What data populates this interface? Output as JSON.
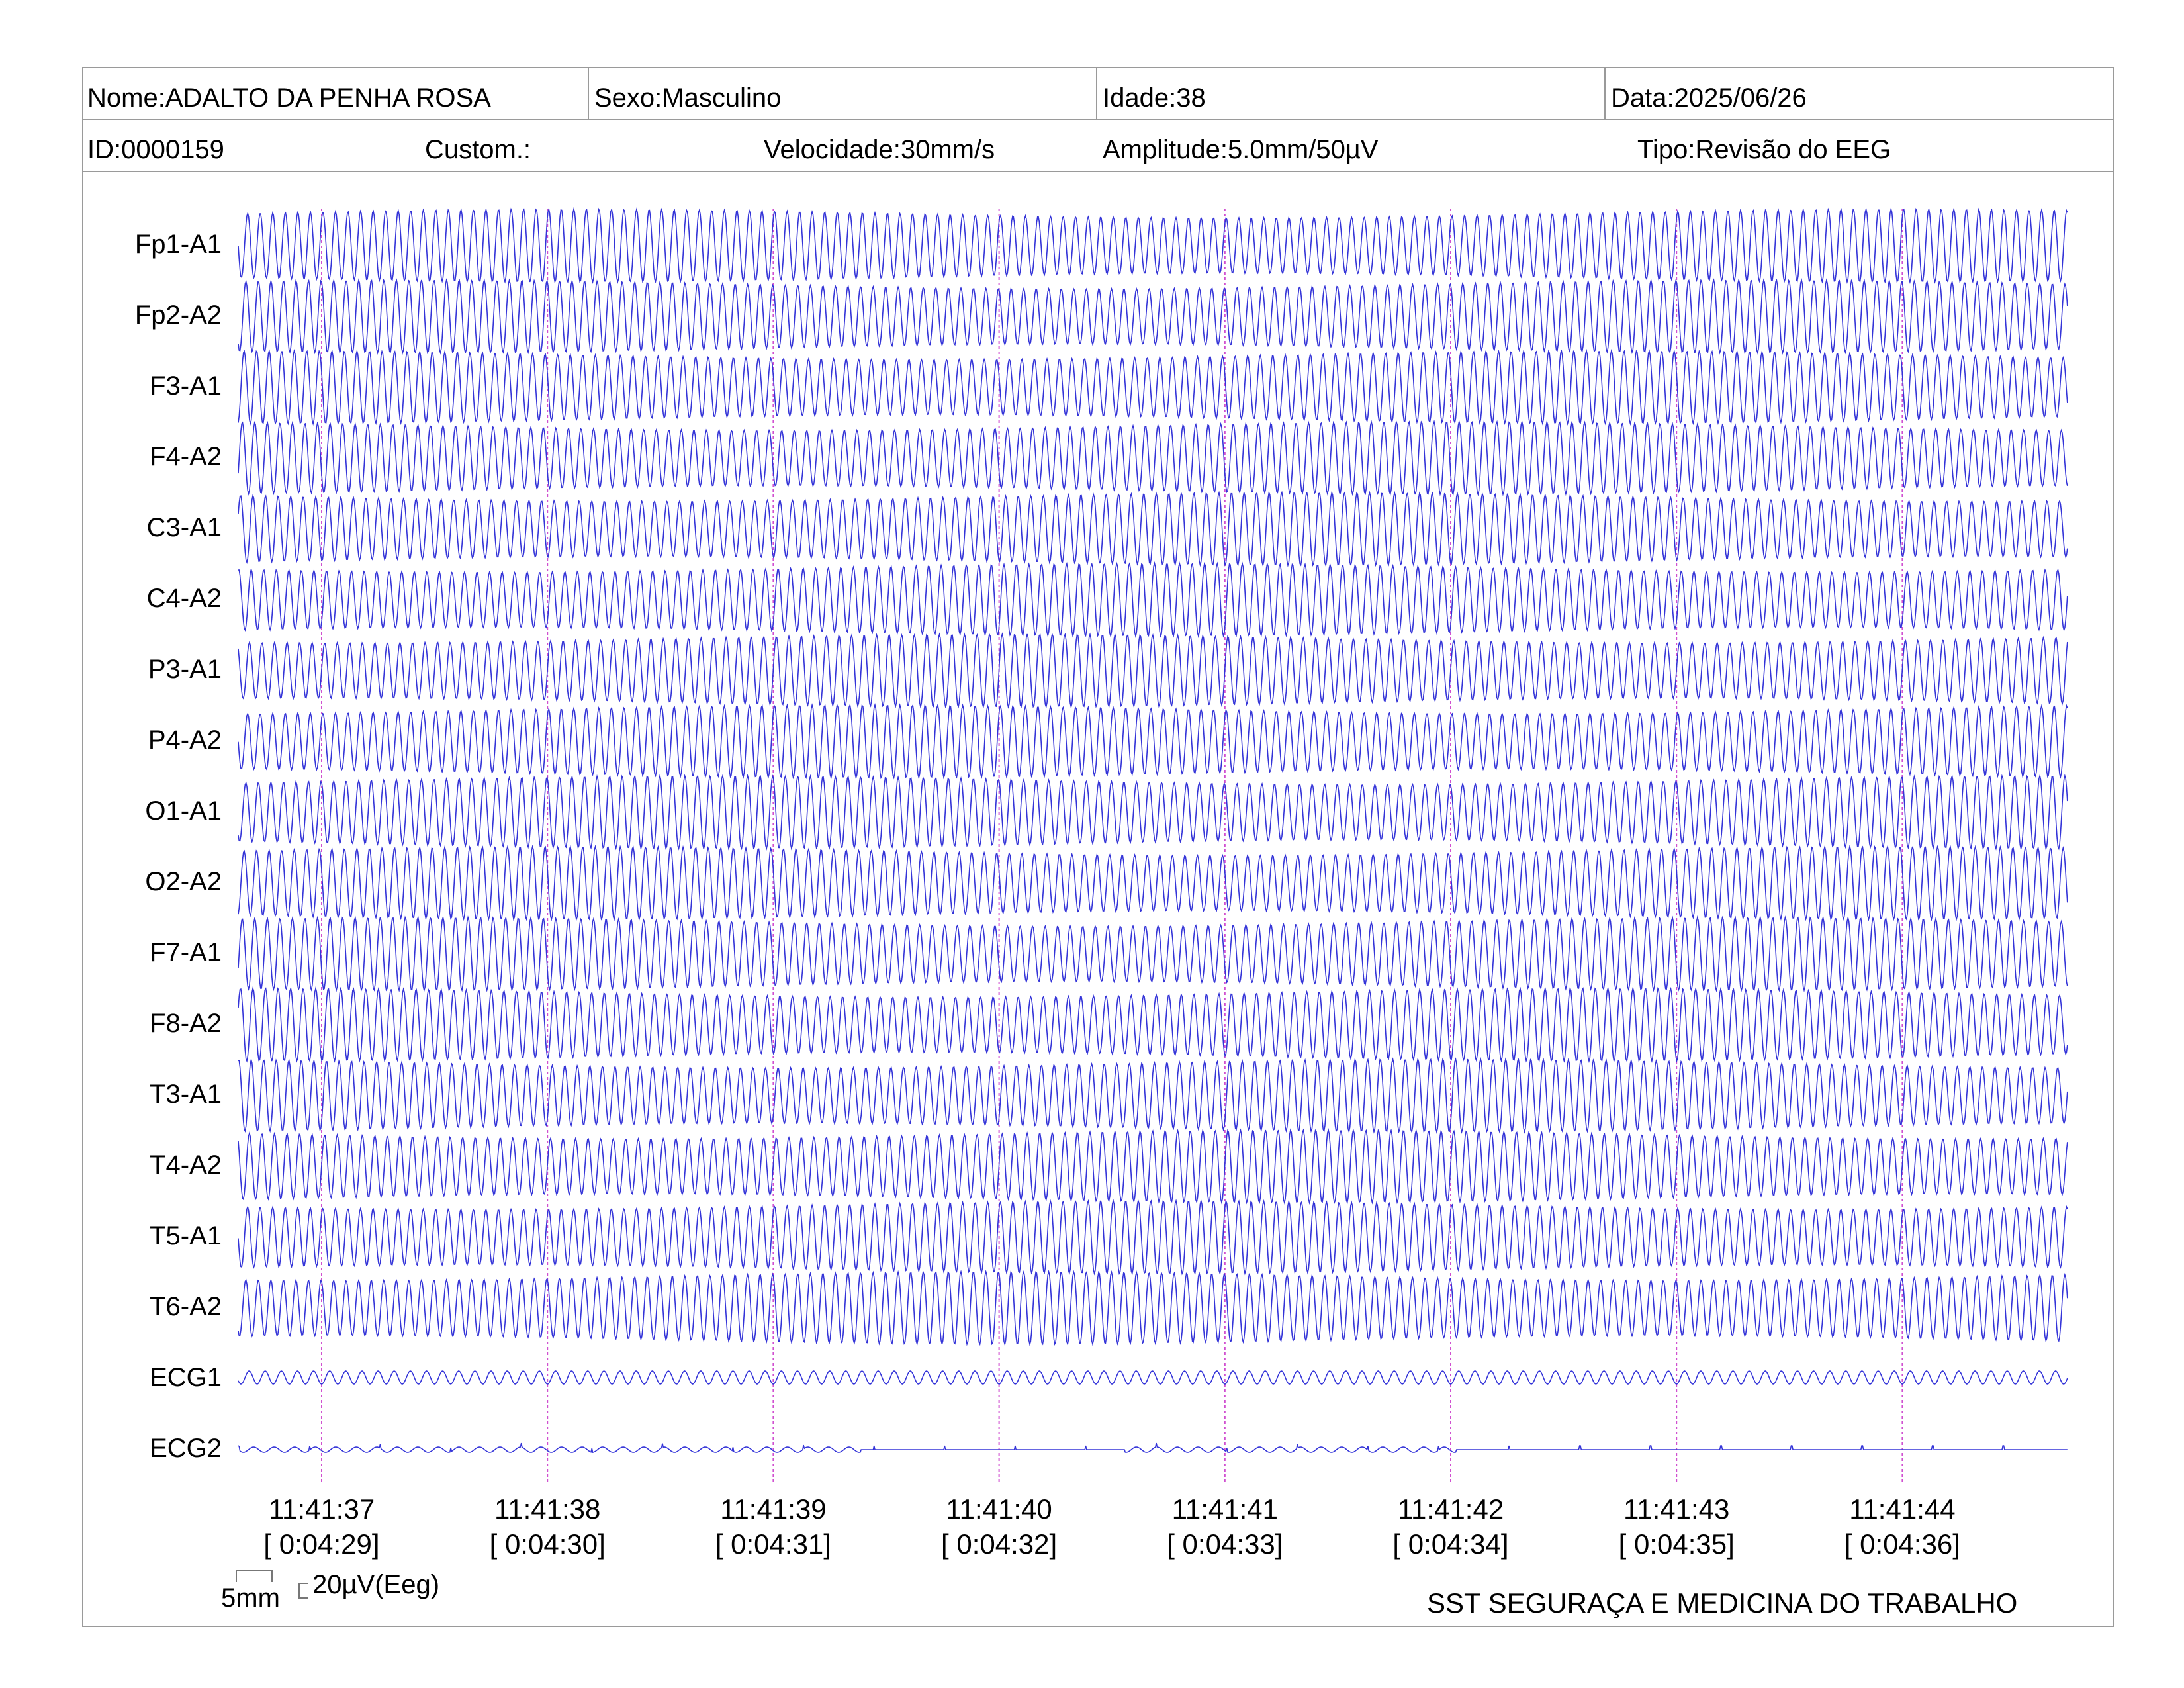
{
  "header": {
    "row1": {
      "name": "Nome:ADALTO DA PENHA ROSA",
      "sex": "Sexo:Masculino",
      "age": "Idade:38",
      "date": "Data:2025/06/26"
    },
    "row2": {
      "id": "ID:0000159",
      "custom": "Custom.:",
      "speed": "Velocidade:30mm/s",
      "amplitude": "Amplitude:5.0mm/50µV",
      "type": "Tipo:Revisão do EEG"
    }
  },
  "scale": {
    "time_label": "5mm",
    "amp_label": "20µV(Eeg)"
  },
  "footer": "SST SEGURAÇA E MEDICINA DO TRABALHO",
  "colors": {
    "trace": "#3434d8",
    "marker": "#d050d0",
    "border": "#9a9a9a"
  },
  "chart_data": {
    "type": "line",
    "channels": [
      "Fp1-A1",
      "Fp2-A2",
      "F3-A1",
      "F4-A2",
      "C3-A1",
      "C4-A2",
      "P3-A1",
      "P4-A2",
      "O1-A1",
      "O2-A2",
      "F7-A1",
      "F8-A2",
      "T3-A1",
      "T4-A2",
      "T5-A1",
      "T6-A2",
      "ECG1",
      "ECG2"
    ],
    "time_markers": [
      {
        "clock": "11:41:37",
        "elapsed": "[ 0:04:29]"
      },
      {
        "clock": "11:41:38",
        "elapsed": "[ 0:04:30]"
      },
      {
        "clock": "11:41:39",
        "elapsed": "[ 0:04:31]"
      },
      {
        "clock": "11:41:40",
        "elapsed": "[ 0:04:32]"
      },
      {
        "clock": "11:41:41",
        "elapsed": "[ 0:04:33]"
      },
      {
        "clock": "11:41:42",
        "elapsed": "[ 0:04:34]"
      },
      {
        "clock": "11:41:43",
        "elapsed": "[ 0:04:35]"
      },
      {
        "clock": "11:41:44",
        "elapsed": "[ 0:04:36]"
      }
    ],
    "eeg_frequency_hz": 18,
    "ecg1_frequency_hz": 14,
    "seconds_visible": 8.1,
    "sweep_speed_mm_per_s": 30,
    "amplitude_mm_per_50uV": 5.0
  }
}
